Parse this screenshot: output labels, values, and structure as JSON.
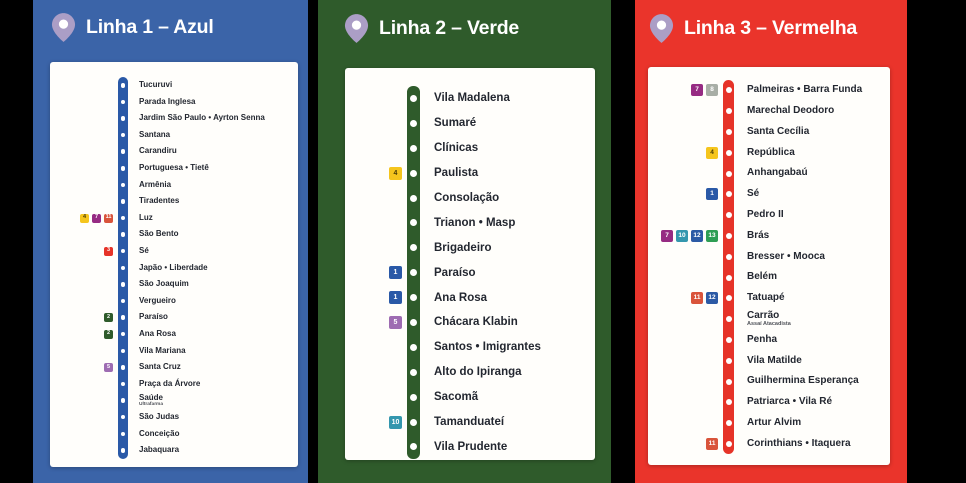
{
  "board": {
    "background": "#000000",
    "card_color": "#FFFEFB",
    "station_text_color": "#232730",
    "pin_color": "#AB9EC6",
    "panels": [
      {
        "title": "Linha 1 – Azul",
        "panel_color": "#3B64A8",
        "track_color": "#2A59A7",
        "stations": [
          {
            "name": "Tucuruvi"
          },
          {
            "name": "Parada Inglesa"
          },
          {
            "name": "Jardim São Paulo • Ayrton Senna"
          },
          {
            "name": "Santana"
          },
          {
            "name": "Carandiru"
          },
          {
            "name": "Portuguesa • Tietê"
          },
          {
            "name": "Armênia"
          },
          {
            "name": "Tiradentes"
          },
          {
            "name": "Luz",
            "badges": [
              "4",
              "7",
              "11"
            ]
          },
          {
            "name": "São Bento"
          },
          {
            "name": "Sé",
            "badges": [
              "3"
            ]
          },
          {
            "name": "Japão • Liberdade"
          },
          {
            "name": "São Joaquim"
          },
          {
            "name": "Vergueiro"
          },
          {
            "name": "Paraíso",
            "badges": [
              "2"
            ]
          },
          {
            "name": "Ana Rosa",
            "badges": [
              "2"
            ]
          },
          {
            "name": "Vila Mariana"
          },
          {
            "name": "Santa Cruz",
            "badges": [
              "5"
            ]
          },
          {
            "name": "Praça da Árvore"
          },
          {
            "name": "Saúde",
            "subtitle": "Ultrafarma"
          },
          {
            "name": "São Judas"
          },
          {
            "name": "Conceição"
          },
          {
            "name": "Jabaquara"
          }
        ]
      },
      {
        "title": "Linha 2 – Verde",
        "panel_color": "#2F5B2B",
        "track_color": "#2F5B2B",
        "stations": [
          {
            "name": "Vila Madalena"
          },
          {
            "name": "Sumaré"
          },
          {
            "name": "Clínicas"
          },
          {
            "name": "Paulista",
            "badges": [
              "4"
            ]
          },
          {
            "name": "Consolação"
          },
          {
            "name": "Trianon • Masp"
          },
          {
            "name": "Brigadeiro"
          },
          {
            "name": "Paraíso",
            "badges": [
              "1"
            ]
          },
          {
            "name": "Ana Rosa",
            "badges": [
              "1"
            ]
          },
          {
            "name": "Chácara Klabin",
            "badges": [
              "5"
            ]
          },
          {
            "name": "Santos • Imigrantes"
          },
          {
            "name": "Alto do Ipiranga"
          },
          {
            "name": "Sacomã"
          },
          {
            "name": "Tamanduateí",
            "badges": [
              "10"
            ]
          },
          {
            "name": "Vila Prudente"
          }
        ]
      },
      {
        "title": "Linha 3 – Vermelha",
        "panel_color": "#EA342B",
        "track_color": "#E63328",
        "stations": [
          {
            "name": "Palmeiras • Barra Funda",
            "badges": [
              "7",
              "8"
            ]
          },
          {
            "name": "Marechal Deodoro"
          },
          {
            "name": "Santa Cecília"
          },
          {
            "name": "República",
            "badges": [
              "4"
            ]
          },
          {
            "name": "Anhangabaú"
          },
          {
            "name": "Sé",
            "badges": [
              "1"
            ]
          },
          {
            "name": "Pedro II"
          },
          {
            "name": "Brás",
            "badges": [
              "7",
              "10",
              "12",
              "13"
            ]
          },
          {
            "name": "Bresser • Mooca"
          },
          {
            "name": "Belém"
          },
          {
            "name": "Tatuapé",
            "badges": [
              "11",
              "12"
            ]
          },
          {
            "name": "Carrão",
            "subtitle": "Assaí Atacadista"
          },
          {
            "name": "Penha"
          },
          {
            "name": "Vila Matilde"
          },
          {
            "name": "Guilhermina Esperança"
          },
          {
            "name": "Patriarca • Vila Ré"
          },
          {
            "name": "Artur Alvim"
          },
          {
            "name": "Corinthians • Itaquera",
            "badges": [
              "11"
            ]
          }
        ]
      }
    ],
    "badge_colors": {
      "1": "#2A59A7",
      "2": "#2F5B2B",
      "3": "#E63328",
      "4": "#F5C51D",
      "5": "#9E6CB2",
      "7": "#962B83",
      "8": "#A8AEA6",
      "10": "#3497AE",
      "11": "#D9543B",
      "12": "#2C5AA5",
      "13": "#2F9E54"
    },
    "badge_dark_text_labels": [
      "4"
    ]
  }
}
